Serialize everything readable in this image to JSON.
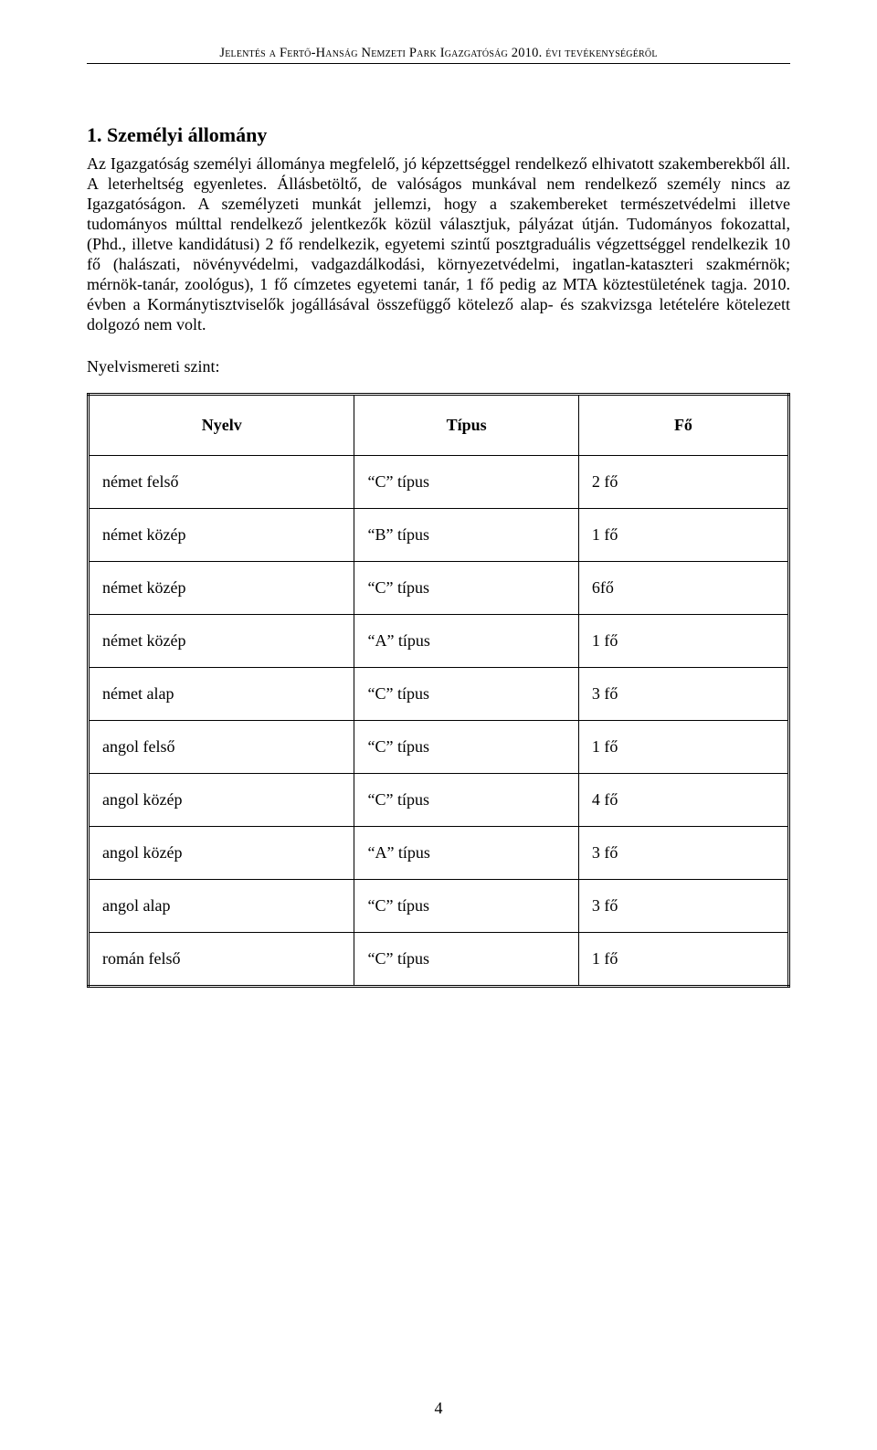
{
  "header": "Jelentés a Fertő-Hanság Nemzeti Park Igazgatóság 2010. évi tevékenységéről",
  "section": {
    "title": "1. Személyi állomány",
    "body": "Az Igazgatóság személyi állománya megfelelő, jó képzettséggel rendelkező elhivatott szakemberekből áll. A leterheltség egyenletes. Állásbetöltő, de valóságos munkával nem rendelkező személy nincs az Igazgatóságon. A személyzeti munkát jellemzi, hogy a szakembereket természetvédelmi illetve tudományos múlttal rendelkező jelentkezők közül választjuk, pályázat útján. Tudományos fokozattal, (Phd., illetve kandidátusi) 2 fő rendelkezik, egyetemi szintű posztgraduális végzettséggel rendelkezik 10 fő (halászati, növényvédelmi, vadgazdálkodási, környezetvédelmi, ingatlan-kataszteri szakmérnök; mérnök-tanár, zoológus), 1 fő címzetes egyetemi tanár, 1 fő pedig az MTA köztestületének tagja.\n2010. évben a Kormánytisztviselők jogállásával összefüggő kötelező alap- és szakvizsga letételére kötelezett dolgozó nem volt.",
    "sub_label": "Nyelvismereti szint:"
  },
  "table": {
    "columns": [
      "Nyelv",
      "Típus",
      "Fő"
    ],
    "col_widths_pct": [
      38,
      32,
      30
    ],
    "header_fontsize": 18,
    "cell_fontsize": 18,
    "border_color": "#000000",
    "background_color": "#ffffff",
    "rows": [
      [
        "német felső",
        "“C” típus",
        "2 fő"
      ],
      [
        "német közép",
        "“B” típus",
        "1 fő"
      ],
      [
        "német közép",
        "“C” típus",
        "6fő"
      ],
      [
        "német közép",
        "“A” típus",
        "1 fő"
      ],
      [
        "német alap",
        "“C” típus",
        "3 fő"
      ],
      [
        "angol felső",
        "“C” típus",
        "1 fő"
      ],
      [
        "angol közép",
        "“C” típus",
        "4 fő"
      ],
      [
        "angol közép",
        "“A” típus",
        "3 fő"
      ],
      [
        "angol alap",
        "“C” típus",
        "3 fő"
      ],
      [
        "román felső",
        "“C” típus",
        "1 fő"
      ]
    ]
  },
  "page_number": "4"
}
